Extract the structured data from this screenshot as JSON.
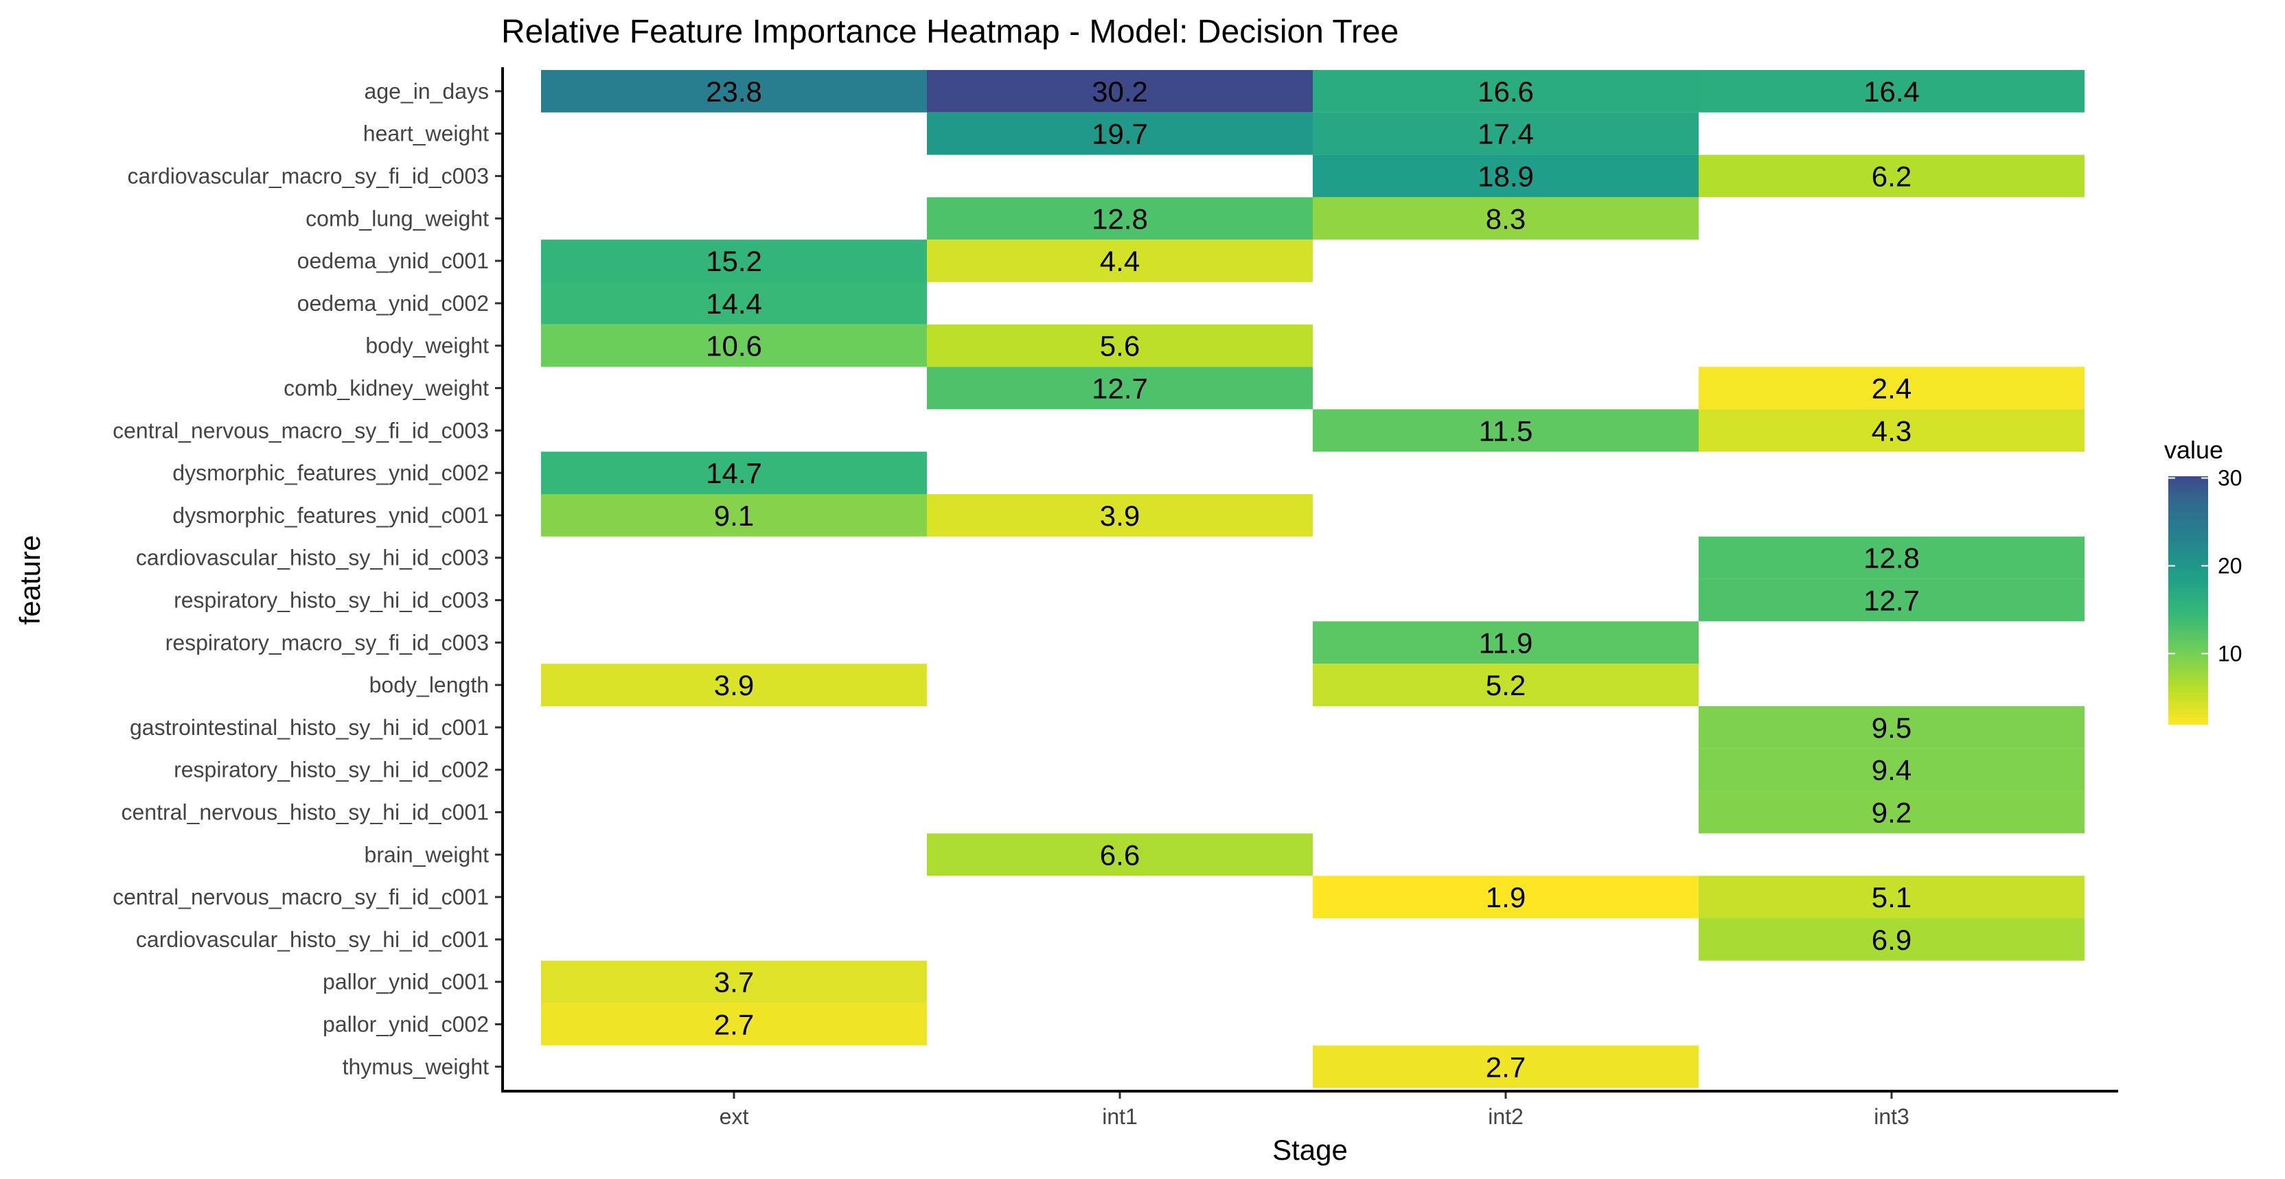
{
  "chart_data": {
    "type": "heatmap",
    "title": "Relative Feature Importance Heatmap - Model: Decision Tree",
    "xlabel": "Stage",
    "ylabel": "feature",
    "x": [
      "ext",
      "int1",
      "int2",
      "int3"
    ],
    "y": [
      "age_in_days",
      "heart_weight",
      "cardiovascular_macro_sy_fi_id_c003",
      "comb_lung_weight",
      "oedema_ynid_c001",
      "oedema_ynid_c002",
      "body_weight",
      "comb_kidney_weight",
      "central_nervous_macro_sy_fi_id_c003",
      "dysmorphic_features_ynid_c002",
      "dysmorphic_features_ynid_c001",
      "cardiovascular_histo_sy_hi_id_c003",
      "respiratory_histo_sy_hi_id_c003",
      "respiratory_macro_sy_fi_id_c003",
      "body_length",
      "gastrointestinal_histo_sy_hi_id_c001",
      "respiratory_histo_sy_hi_id_c002",
      "central_nervous_histo_sy_hi_id_c001",
      "brain_weight",
      "central_nervous_macro_sy_fi_id_c001",
      "cardiovascular_histo_sy_hi_id_c001",
      "pallor_ynid_c001",
      "pallor_ynid_c002",
      "thymus_weight"
    ],
    "values": [
      [
        23.8,
        30.2,
        16.6,
        16.4
      ],
      [
        null,
        19.7,
        17.4,
        null
      ],
      [
        null,
        null,
        18.9,
        6.2
      ],
      [
        null,
        12.8,
        8.3,
        null
      ],
      [
        15.2,
        4.4,
        null,
        null
      ],
      [
        14.4,
        null,
        null,
        null
      ],
      [
        10.6,
        5.6,
        null,
        null
      ],
      [
        null,
        12.7,
        null,
        2.4
      ],
      [
        null,
        null,
        11.5,
        4.3
      ],
      [
        14.7,
        null,
        null,
        null
      ],
      [
        9.1,
        3.9,
        null,
        null
      ],
      [
        null,
        null,
        null,
        12.8
      ],
      [
        null,
        null,
        null,
        12.7
      ],
      [
        null,
        null,
        11.9,
        null
      ],
      [
        3.9,
        null,
        5.2,
        null
      ],
      [
        null,
        null,
        null,
        9.5
      ],
      [
        null,
        null,
        null,
        9.4
      ],
      [
        null,
        null,
        null,
        9.2
      ],
      [
        null,
        6.6,
        null,
        null
      ],
      [
        null,
        null,
        1.9,
        5.1
      ],
      [
        null,
        null,
        null,
        6.9
      ],
      [
        3.7,
        null,
        null,
        null
      ],
      [
        2.7,
        null,
        null,
        null
      ],
      [
        null,
        null,
        2.7,
        null
      ]
    ],
    "legend": {
      "title": "value",
      "ticks": [
        10,
        20,
        30
      ],
      "range": [
        1.9,
        30.2
      ],
      "position": "right"
    },
    "colorscale": "viridis-reversed",
    "grid": false
  }
}
